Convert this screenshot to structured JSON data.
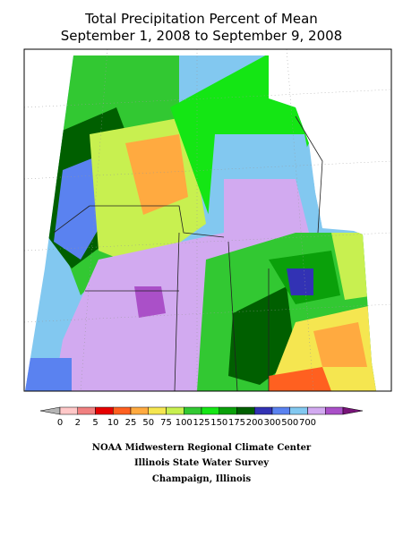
{
  "header": {
    "title": "Total Precipitation Percent of Mean",
    "subtitle": "September 1, 2008 to September 9, 2008"
  },
  "legend": {
    "labels": [
      "0",
      "2",
      "5",
      "10",
      "25",
      "50",
      "75",
      "100",
      "125",
      "150",
      "175",
      "200",
      "300",
      "500",
      "700"
    ],
    "colors": [
      "#b4b4b4",
      "#ffc8c8",
      "#f08080",
      "#e60000",
      "#ff6020",
      "#ffaa40",
      "#f5e650",
      "#c8f050",
      "#32c832",
      "#14e614",
      "#0aa00a",
      "#005f00",
      "#3232b4",
      "#5a82f0",
      "#82c8f0",
      "#d2aaf0",
      "#aa50c8",
      "#781478"
    ]
  },
  "credits": [
    "NOAA Midwestern Regional Climate Center",
    "Illinois State Water Survey",
    "Champaign, Illinois"
  ]
}
